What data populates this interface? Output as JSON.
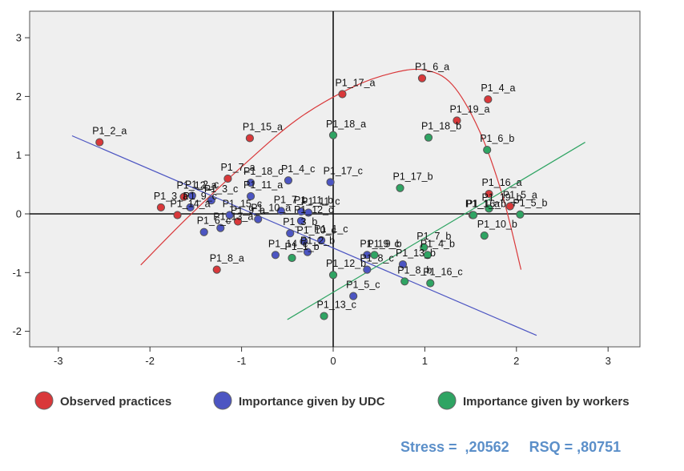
{
  "chart_data": {
    "type": "scatter",
    "xlim": [
      -3.35,
      3.35
    ],
    "ylim": [
      -2.25,
      3.3
    ],
    "x_ticks": [
      -3,
      -2,
      -1,
      0,
      1,
      2,
      3
    ],
    "y_ticks": [
      -2,
      -1,
      0,
      1,
      2,
      3
    ],
    "grid": false,
    "series": [
      {
        "name": "Observed practices",
        "color": "#d9383a",
        "points": [
          {
            "label": "P1_2_a",
            "x": -2.55,
            "y": 1.22
          },
          {
            "label": "P1_3_a",
            "x": -1.88,
            "y": 0.11
          },
          {
            "label": "P1_14_a",
            "x": -1.7,
            "y": -0.02
          },
          {
            "label": "P1_7_a",
            "x": -1.15,
            "y": 0.6
          },
          {
            "label": "P1_9_a",
            "x": -1.04,
            "y": -0.13
          },
          {
            "label": "P1_8_a",
            "x": -1.27,
            "y": -0.95
          },
          {
            "label": "P1_15_a",
            "x": -0.91,
            "y": 1.29
          },
          {
            "label": "P1_17_a",
            "x": 0.1,
            "y": 2.04
          },
          {
            "label": "P1_6_a",
            "x": 0.97,
            "y": 2.31
          },
          {
            "label": "P1_4_a",
            "x": 1.69,
            "y": 1.95
          },
          {
            "label": "P1_19_a",
            "x": 1.35,
            "y": 1.59
          },
          {
            "label": "P1_16_a",
            "x": 1.7,
            "y": 0.34
          },
          {
            "label": "P1_5_a",
            "x": 1.93,
            "y": 0.13
          },
          {
            "label": "P1_12_a",
            "x": -1.63,
            "y": 0.29
          },
          {
            "label": "P1_1_a",
            "x": 1.52,
            "y": -0.02
          }
        ]
      },
      {
        "name": "Importance given by UDC",
        "color": "#4c55c2",
        "points": [
          {
            "label": "P1_2_c",
            "x": -1.54,
            "y": 0.31
          },
          {
            "label": "P1_9_c",
            "x": -1.56,
            "y": 0.11
          },
          {
            "label": "P1_6_c",
            "x": -1.41,
            "y": -0.31
          },
          {
            "label": "P1_3_c",
            "x": -1.33,
            "y": 0.23
          },
          {
            "label": "P1_18_c",
            "x": -0.9,
            "y": 0.53
          },
          {
            "label": "P1_15_c",
            "x": -1.13,
            "y": -0.02
          },
          {
            "label": "P1_11_a",
            "x": -0.9,
            "y": 0.3
          },
          {
            "label": "P1_4_c",
            "x": -0.49,
            "y": 0.57
          },
          {
            "label": "P1_13_a",
            "x": -1.23,
            "y": -0.24
          },
          {
            "label": "P1_7_c",
            "x": -0.57,
            "y": 0.05
          },
          {
            "label": "P1_10_a",
            "x": -0.82,
            "y": -0.09
          },
          {
            "label": "P1_17_c",
            "x": -0.03,
            "y": 0.54
          },
          {
            "label": "P1_11_b",
            "x": -0.35,
            "y": 0.04
          },
          {
            "label": "P1_11_c",
            "x": -0.27,
            "y": 0.02
          },
          {
            "label": "P1_3_b",
            "x": -0.47,
            "y": -0.33
          },
          {
            "label": "P1_14_c",
            "x": -0.63,
            "y": -0.7
          },
          {
            "label": "P1_10_c",
            "x": -0.32,
            "y": -0.47
          },
          {
            "label": "P1_1_c",
            "x": -0.13,
            "y": -0.45
          },
          {
            "label": "P1_2_b",
            "x": -0.28,
            "y": -0.65
          },
          {
            "label": "P1_19_c",
            "x": 0.37,
            "y": -0.7
          },
          {
            "label": "P1_8_c",
            "x": 0.37,
            "y": -0.95
          },
          {
            "label": "P1_13_b",
            "x": 0.76,
            "y": -0.86
          },
          {
            "label": "P1_5_c",
            "x": 0.22,
            "y": -1.4
          },
          {
            "label": "P1_12_c",
            "x": -0.35,
            "y": -0.12
          }
        ]
      },
      {
        "name": "Importance given by workers",
        "color": "#2fa463",
        "points": [
          {
            "label": "P1_18_a",
            "x": 0.0,
            "y": 1.34
          },
          {
            "label": "P1_18_b",
            "x": 1.04,
            "y": 1.3
          },
          {
            "label": "P1_6_b",
            "x": 1.68,
            "y": 1.09
          },
          {
            "label": "P1_17_b",
            "x": 0.73,
            "y": 0.44
          },
          {
            "label": "P1_19_b",
            "x": 1.7,
            "y": 0.09
          },
          {
            "label": "P1_16_b",
            "x": 1.53,
            "y": -0.02
          },
          {
            "label": "P1_5_b",
            "x": 2.04,
            "y": -0.01
          },
          {
            "label": "P1_7_b",
            "x": 0.99,
            "y": -0.57
          },
          {
            "label": "P1_9_b",
            "x": 0.45,
            "y": -0.7
          },
          {
            "label": "P1_4_b",
            "x": 1.03,
            "y": -0.7
          },
          {
            "label": "P1_16_c",
            "x": 1.06,
            "y": -1.18
          },
          {
            "label": "P1_8_b",
            "x": 0.78,
            "y": -1.15
          },
          {
            "label": "P1_10_b",
            "x": 1.65,
            "y": -0.37
          },
          {
            "label": "P1_1_b",
            "x": -0.45,
            "y": -0.75
          },
          {
            "label": "P1_12_b",
            "x": 0.0,
            "y": -1.04
          },
          {
            "label": "P1_13_c",
            "x": -0.1,
            "y": -1.74
          }
        ]
      }
    ],
    "fit_lines": [
      {
        "series": "Observed practices",
        "kind": "curve",
        "points": [
          [
            -2.1,
            -0.87
          ],
          [
            -1.6,
            -0.08
          ],
          [
            -1.0,
            0.8
          ],
          [
            -0.4,
            1.6
          ],
          [
            0.2,
            2.15
          ],
          [
            0.65,
            2.4
          ],
          [
            1.0,
            2.45
          ],
          [
            1.3,
            2.2
          ],
          [
            1.6,
            1.4
          ],
          [
            1.85,
            0.3
          ],
          [
            2.05,
            -0.95
          ]
        ]
      },
      {
        "series": "Importance given by UDC",
        "kind": "line",
        "points": [
          [
            -2.85,
            1.33
          ],
          [
            2.22,
            -2.07
          ]
        ]
      },
      {
        "series": "Importance given by workers",
        "kind": "line",
        "points": [
          [
            -0.5,
            -1.8
          ],
          [
            2.75,
            1.22
          ]
        ]
      }
    ]
  },
  "legend": [
    {
      "label": "Observed practices",
      "color": "#d9383a"
    },
    {
      "label": "Importance given by UDC",
      "color": "#4c55c2"
    },
    {
      "label": "Importance given by workers",
      "color": "#2fa463"
    }
  ],
  "stats": {
    "text": "Stress =  ,20562     RSQ = ,80751"
  }
}
